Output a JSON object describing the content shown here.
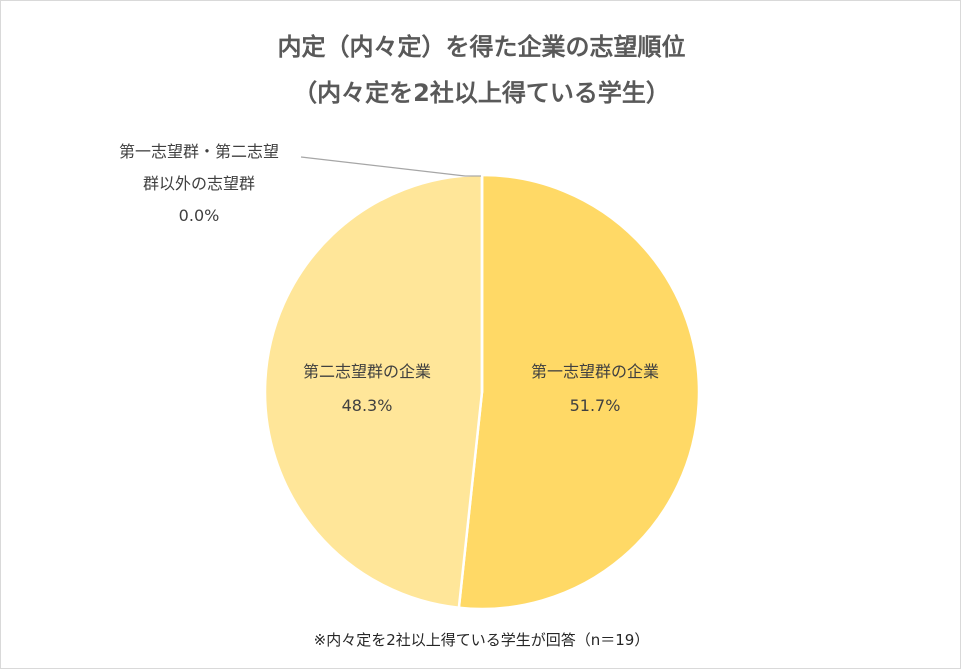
{
  "chart_data": {
    "type": "pie",
    "title": "内定（内々定）を得た企業の志望順位",
    "subtitle": "（内々定を2社以上得ている学生）",
    "slices": [
      {
        "label": "第一志望群の企業",
        "value": 51.7,
        "value_label": "51.7%",
        "color": "#ffd966"
      },
      {
        "label": "第二志望群の企業",
        "value": 48.3,
        "value_label": "48.3%",
        "color": "#ffe699"
      },
      {
        "label_lines": [
          "第一志望群・第二志望",
          "群以外の志望群"
        ],
        "value": 0.0,
        "value_label": "0.0%",
        "color": "#d9d9d9"
      }
    ],
    "footnote": "※内々定を2社以上得ている学生が回答（n＝19）"
  }
}
